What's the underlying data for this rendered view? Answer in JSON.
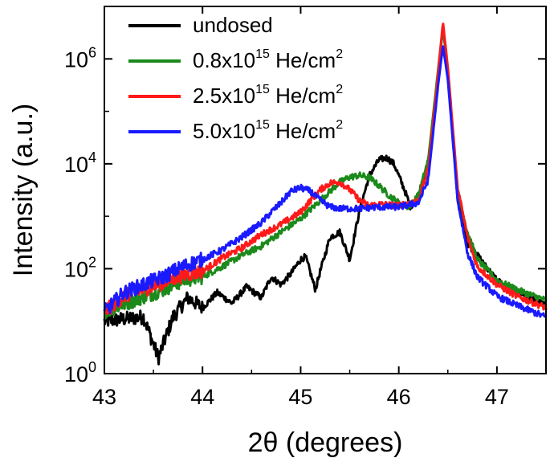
{
  "chart_data": {
    "type": "line",
    "xlabel": "2θ (degrees)",
    "ylabel": "Intensity (a.u.)",
    "xlim": [
      43,
      47.5
    ],
    "ylim": [
      1,
      10000000
    ],
    "yscale": "log",
    "x_ticks": [
      43,
      44,
      45,
      46,
      47
    ],
    "y_ticks": [
      {
        "value": 1,
        "base": "10",
        "exp": "0"
      },
      {
        "value": 100,
        "base": "10",
        "exp": "2"
      },
      {
        "value": 10000,
        "base": "10",
        "exp": "4"
      },
      {
        "value": 1000000,
        "base": "10",
        "exp": "6"
      }
    ],
    "grid": false,
    "legend_position": "top-left",
    "series": [
      {
        "name": "undosed",
        "legend_label": {
          "main": "undosed",
          "sup": "",
          "after": "",
          "sup2": ""
        },
        "color": "#000000",
        "x": [
          43.0,
          43.2,
          43.4,
          43.55,
          43.7,
          43.85,
          44.0,
          44.15,
          44.3,
          44.45,
          44.6,
          44.7,
          44.8,
          44.9,
          45.0,
          45.05,
          45.15,
          45.2,
          45.3,
          45.4,
          45.5,
          45.6,
          45.7,
          45.8,
          45.88,
          45.95,
          46.05,
          46.12,
          46.2,
          46.3,
          46.4,
          46.45,
          46.5,
          46.6,
          46.7,
          46.8,
          46.9,
          47.0,
          47.2,
          47.5
        ],
        "y": [
          10,
          11,
          12,
          2,
          12,
          28,
          18,
          35,
          22,
          45,
          28,
          70,
          50,
          80,
          150,
          170,
          40,
          90,
          400,
          500,
          150,
          1300,
          6000,
          12000,
          13000,
          10000,
          3500,
          1500,
          2500,
          10000,
          500000,
          4000000,
          600000,
          2000,
          300,
          180,
          100,
          60,
          35,
          20
        ]
      },
      {
        "name": "0.8x10^15 He/cm^2",
        "legend_label": {
          "main": "0.8x10",
          "sup": "15",
          "after": " He/cm",
          "sup2": "2"
        },
        "color": "#1a8a1a",
        "x": [
          43.0,
          43.3,
          43.6,
          43.8,
          44.0,
          44.2,
          44.4,
          44.6,
          44.8,
          45.0,
          45.2,
          45.4,
          45.5,
          45.6,
          45.7,
          45.8,
          45.9,
          46.0,
          46.1,
          46.2,
          46.3,
          46.4,
          46.45,
          46.5,
          46.6,
          46.7,
          46.8,
          47.0,
          47.2,
          47.5
        ],
        "y": [
          15,
          25,
          40,
          60,
          70,
          110,
          180,
          270,
          500,
          900,
          2000,
          4500,
          5600,
          6000,
          5500,
          3800,
          2500,
          1800,
          1500,
          2500,
          12000,
          600000,
          4500000,
          500000,
          3000,
          500,
          150,
          60,
          40,
          25
        ]
      },
      {
        "name": "2.5x10^15 He/cm^2",
        "legend_label": {
          "main": "2.5x10",
          "sup": "15",
          "after": " He/cm",
          "sup2": "2"
        },
        "color": "#ff1a1a",
        "x": [
          43.0,
          43.2,
          43.4,
          43.6,
          43.8,
          44.0,
          44.2,
          44.4,
          44.6,
          44.8,
          45.0,
          45.1,
          45.2,
          45.3,
          45.4,
          45.5,
          45.6,
          45.7,
          45.8,
          46.0,
          46.2,
          46.3,
          46.4,
          46.45,
          46.5,
          46.6,
          46.7,
          46.8,
          47.0,
          47.2,
          47.5
        ],
        "y": [
          15,
          30,
          40,
          55,
          75,
          90,
          160,
          250,
          450,
          700,
          1200,
          2000,
          3200,
          4300,
          4500,
          3200,
          2000,
          1600,
          1700,
          1600,
          2000,
          8000,
          500000,
          5000000,
          700000,
          3500,
          400,
          110,
          50,
          30,
          18
        ]
      },
      {
        "name": "5.0x10^15 He/cm^2",
        "legend_label": {
          "main": "5.0x10",
          "sup": "15",
          "after": " He/cm",
          "sup2": "2"
        },
        "color": "#1a1aff",
        "x": [
          43.0,
          43.2,
          43.4,
          43.6,
          43.8,
          44.0,
          44.2,
          44.4,
          44.6,
          44.7,
          44.8,
          44.9,
          45.0,
          45.1,
          45.2,
          45.3,
          45.4,
          45.6,
          45.8,
          46.0,
          46.2,
          46.3,
          46.4,
          46.45,
          46.5,
          46.6,
          46.7,
          46.8,
          47.0,
          47.2,
          47.5
        ],
        "y": [
          15,
          35,
          50,
          70,
          110,
          150,
          230,
          400,
          750,
          1200,
          1800,
          3000,
          3500,
          3000,
          2000,
          1500,
          1400,
          1400,
          1500,
          1500,
          1800,
          5000,
          300000,
          1800000,
          400000,
          2000,
          200,
          70,
          30,
          20,
          12
        ]
      }
    ]
  }
}
